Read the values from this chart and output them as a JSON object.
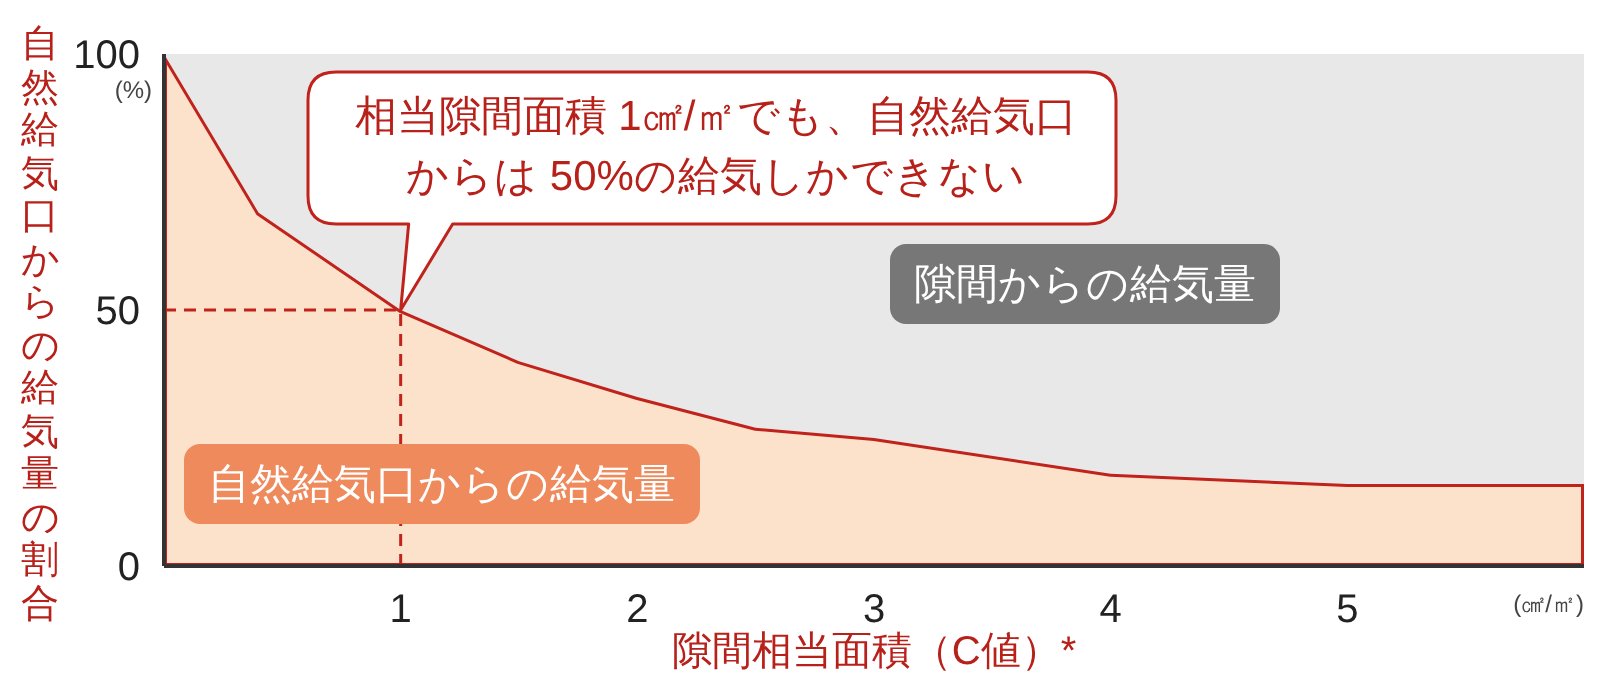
{
  "chart_data": {
    "type": "area",
    "xlabel": "隙間相当面積（C値）*",
    "ylabel": "自然給気口からの給気量の割合",
    "x": [
      0,
      0.4,
      1,
      1.5,
      2,
      2.5,
      3,
      4,
      5,
      6
    ],
    "series": [
      {
        "name": "自然給気口からの給気量",
        "color": "#fde2cb",
        "values": [
          100,
          69,
          50,
          40,
          33,
          27,
          25,
          18,
          16,
          16
        ]
      },
      {
        "name": "隙間からの給気量",
        "color": "#e8e8e8",
        "values": [
          0,
          31,
          50,
          60,
          67,
          73,
          75,
          82,
          84,
          84
        ]
      }
    ],
    "stacked": true,
    "xlim": [
      0,
      6
    ],
    "xticks": [
      1,
      2,
      3,
      4,
      5
    ],
    "ylim": [
      0,
      100
    ],
    "yticks": [
      0,
      50,
      100
    ],
    "ref_lines": [
      {
        "axis": "x",
        "value": 1,
        "color": "#c0221c",
        "line_style": "dashed"
      },
      {
        "axis": "y",
        "value": 50,
        "color": "#c0221c",
        "line_style": "dashed"
      }
    ],
    "annotations": [
      {
        "text": "相当隙間面積 1㎠/㎡でも、自然給気口からは 50%の給気しかできない",
        "x": 1,
        "y": 50
      },
      "(%)",
      "(㎠/㎡)"
    ]
  }
}
